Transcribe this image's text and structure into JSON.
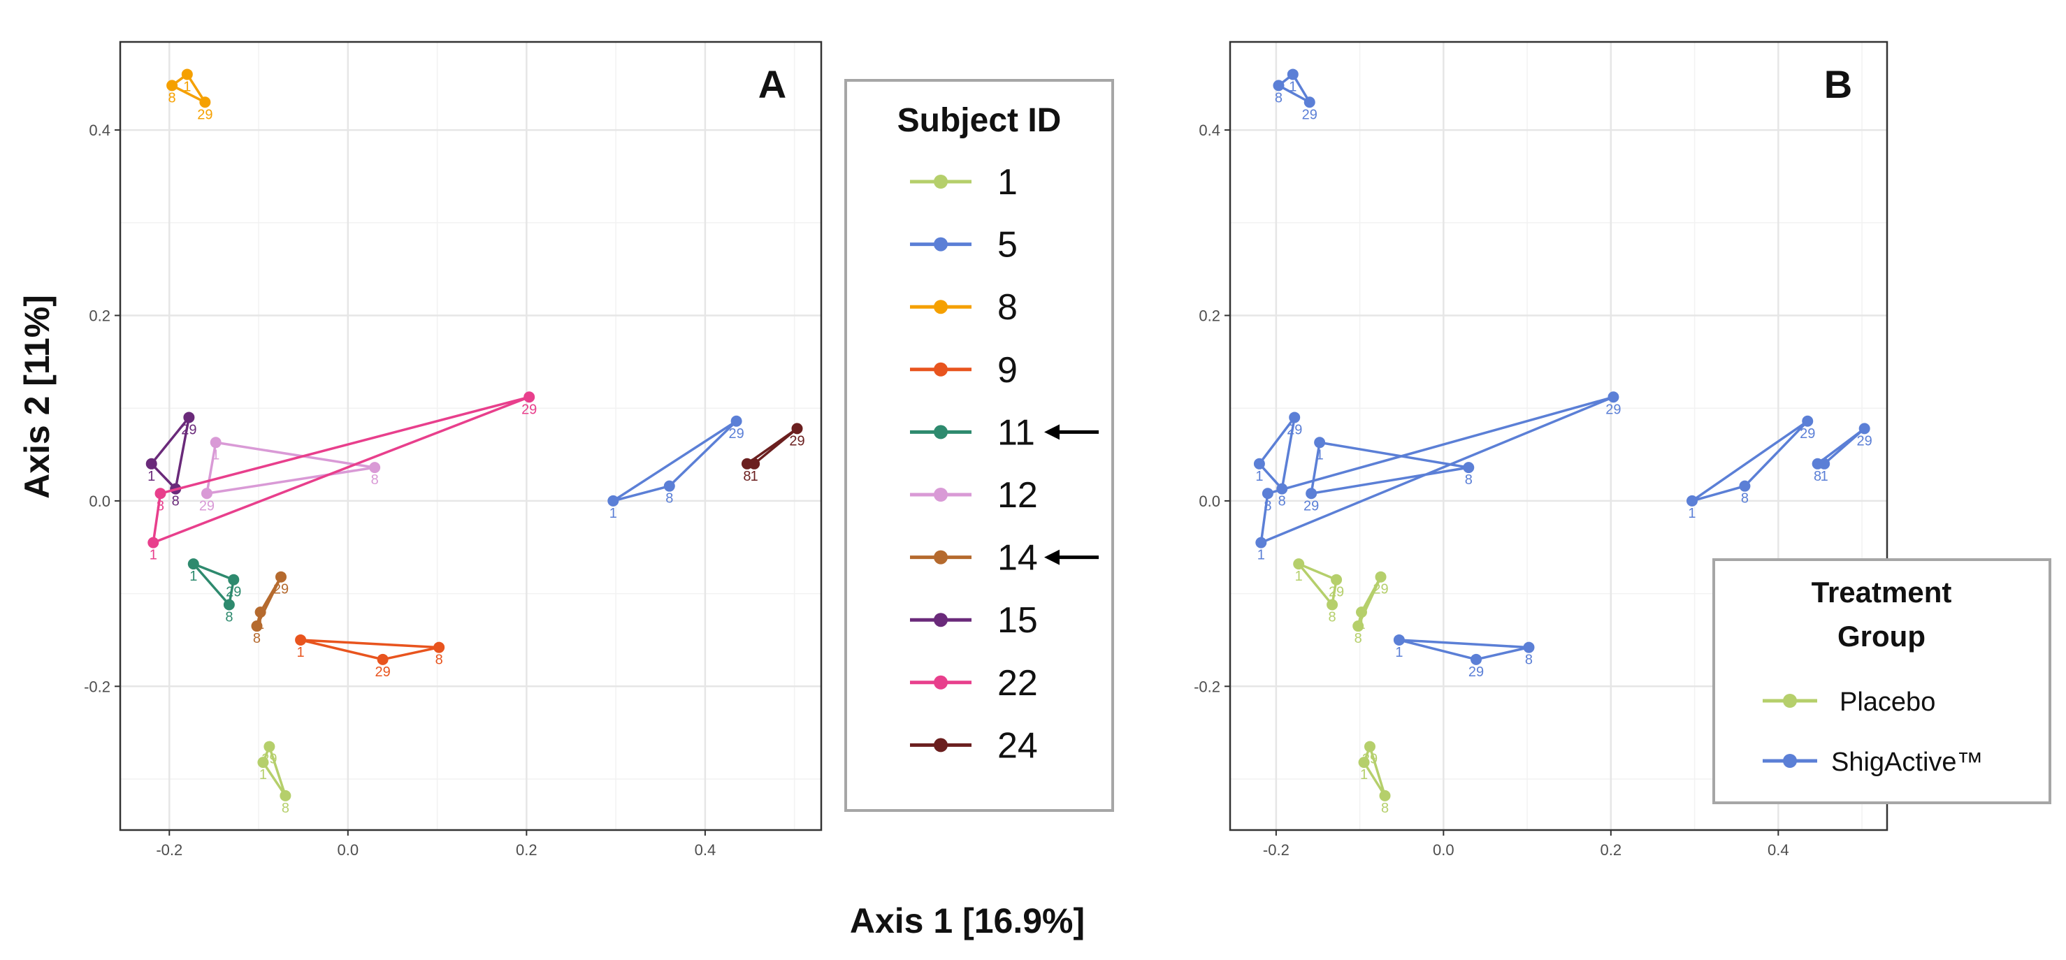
{
  "chart_data": {
    "type": "scatter",
    "xlabel": "Axis 1 [16.9%]",
    "ylabel": "Axis 2 [11%]",
    "xlim": [
      -0.255,
      0.53
    ],
    "ylim": [
      -0.355,
      0.495
    ],
    "x_ticks": [
      "-0.2",
      "0.0",
      "0.2",
      "0.4"
    ],
    "y_ticks": [
      "-0.2",
      "0.0",
      "0.2",
      "0.4"
    ],
    "x_tick_values": [
      -0.2,
      0.0,
      0.2,
      0.4
    ],
    "y_tick_values": [
      -0.2,
      0.0,
      0.2,
      0.4
    ],
    "panels": [
      {
        "label": "A",
        "color_by": "subject"
      },
      {
        "label": "B",
        "color_by": "group"
      }
    ],
    "legend_subject": {
      "title": "Subject ID",
      "entries": [
        {
          "id": "1",
          "color": "#b5cf6b"
        },
        {
          "id": "5",
          "color": "#5b7fd6"
        },
        {
          "id": "8",
          "color": "#f5a000"
        },
        {
          "id": "9",
          "color": "#e8541e"
        },
        {
          "id": "11",
          "color": "#2e8a6e",
          "arrow": true
        },
        {
          "id": "12",
          "color": "#d99ad6"
        },
        {
          "id": "14",
          "color": "#b56a2e",
          "arrow": true
        },
        {
          "id": "15",
          "color": "#6a2a7a"
        },
        {
          "id": "22",
          "color": "#e83f8c"
        },
        {
          "id": "24",
          "color": "#6b1f1f"
        }
      ]
    },
    "legend_group": {
      "title_line1": "Treatment",
      "title_line2": "Group",
      "entries": [
        {
          "name": "Placebo",
          "color": "#b5cf6b"
        },
        {
          "name": "ShigActive™",
          "color": "#5b7fd6"
        }
      ]
    },
    "subjects": [
      {
        "id": "1",
        "group": "Placebo",
        "points": [
          {
            "day": "1",
            "x": -0.095,
            "y": -0.282
          },
          {
            "day": "29",
            "x": -0.088,
            "y": -0.265
          },
          {
            "day": "8",
            "x": -0.07,
            "y": -0.318
          }
        ]
      },
      {
        "id": "5",
        "group": "ShigActive™",
        "points": [
          {
            "day": "1",
            "x": 0.297,
            "y": 0.0
          },
          {
            "day": "8",
            "x": 0.36,
            "y": 0.016
          },
          {
            "day": "29",
            "x": 0.435,
            "y": 0.086
          }
        ]
      },
      {
        "id": "8",
        "group": "ShigActive™",
        "points": [
          {
            "day": "8",
            "x": -0.197,
            "y": 0.448
          },
          {
            "day": "1",
            "x": -0.18,
            "y": 0.46
          },
          {
            "day": "29",
            "x": -0.16,
            "y": 0.43
          }
        ]
      },
      {
        "id": "9",
        "group": "ShigActive™",
        "points": [
          {
            "day": "1",
            "x": -0.053,
            "y": -0.15
          },
          {
            "day": "8",
            "x": 0.102,
            "y": -0.158
          },
          {
            "day": "29",
            "x": 0.039,
            "y": -0.171
          }
        ]
      },
      {
        "id": "11",
        "group": "Placebo",
        "points": [
          {
            "day": "1",
            "x": -0.173,
            "y": -0.068
          },
          {
            "day": "29",
            "x": -0.128,
            "y": -0.085
          },
          {
            "day": "8",
            "x": -0.133,
            "y": -0.112
          }
        ]
      },
      {
        "id": "12",
        "group": "ShigActive™",
        "points": [
          {
            "day": "1",
            "x": -0.148,
            "y": 0.063
          },
          {
            "day": "8",
            "x": 0.03,
            "y": 0.036
          },
          {
            "day": "29",
            "x": -0.158,
            "y": 0.008
          }
        ]
      },
      {
        "id": "14",
        "group": "Placebo",
        "points": [
          {
            "day": "29",
            "x": -0.075,
            "y": -0.082
          },
          {
            "day": "1",
            "x": -0.098,
            "y": -0.12
          },
          {
            "day": "8",
            "x": -0.102,
            "y": -0.135
          }
        ]
      },
      {
        "id": "15",
        "group": "ShigActive™",
        "points": [
          {
            "day": "1",
            "x": -0.22,
            "y": 0.04
          },
          {
            "day": "29",
            "x": -0.178,
            "y": 0.09
          },
          {
            "day": "8",
            "x": -0.193,
            "y": 0.013
          }
        ]
      },
      {
        "id": "22",
        "group": "ShigActive™",
        "points": [
          {
            "day": "8",
            "x": -0.21,
            "y": 0.008
          },
          {
            "day": "29",
            "x": 0.203,
            "y": 0.112
          },
          {
            "day": "1",
            "x": -0.218,
            "y": -0.045
          }
        ]
      },
      {
        "id": "24",
        "group": "ShigActive™",
        "points": [
          {
            "day": "8",
            "x": 0.447,
            "y": 0.04
          },
          {
            "day": "1",
            "x": 0.455,
            "y": 0.04
          },
          {
            "day": "29",
            "x": 0.503,
            "y": 0.078
          }
        ]
      }
    ]
  }
}
